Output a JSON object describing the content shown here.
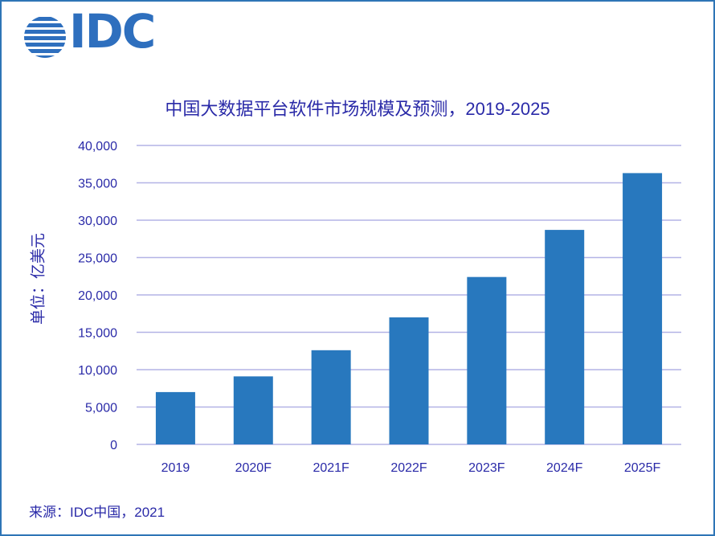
{
  "logo": {
    "text": "IDC",
    "icon": "idc-globe-icon"
  },
  "chart_data": {
    "type": "bar",
    "title": "中国大数据平台软件市场规模及预测，2019-2025",
    "ylabel": "单位：亿美元",
    "xlabel": "",
    "categories": [
      "2019",
      "2020F",
      "2021F",
      "2022F",
      "2023F",
      "2024F",
      "2025F"
    ],
    "values": [
      7000,
      9100,
      12600,
      17000,
      22400,
      28700,
      36300
    ],
    "ylim": [
      0,
      40000
    ],
    "yticks": [
      "0",
      "5,000",
      "10,000",
      "15,000",
      "20,000",
      "25,000",
      "30,000",
      "35,000",
      "40,000"
    ],
    "grid": true,
    "legend": "none"
  },
  "source": "来源：IDC中国，2021",
  "colors": {
    "bar": "#2878be",
    "grid": "#b3b3e6",
    "text": "#2a2aa8",
    "frame": "#2e75b6",
    "logo": "#2e6fbe"
  }
}
